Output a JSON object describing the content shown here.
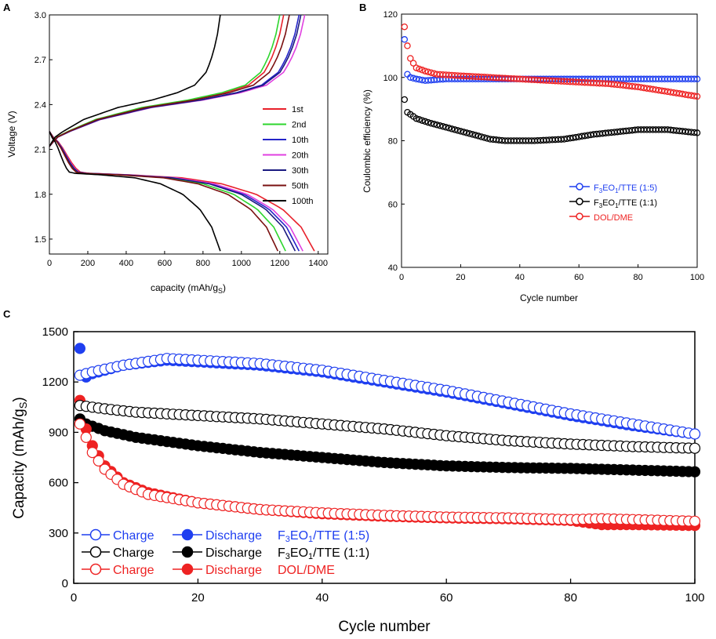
{
  "chart_data": [
    {
      "id": "A",
      "type": "line",
      "panel_label": "A",
      "xlabel_main": "capacity (mAh/g",
      "xlabel_sub": "S",
      "xlabel_end": ")",
      "ylabel": "Voltage (V)",
      "xlim": [
        0,
        1450
      ],
      "ylim": [
        1.4,
        3.0
      ],
      "xticks": [
        "0",
        "200",
        "400",
        "600",
        "800",
        "1000",
        "1200",
        "1400"
      ],
      "yticks": [
        "1.5",
        "1.8",
        "2.1",
        "2.4",
        "2.7",
        "3.0"
      ],
      "legend_position": "center-right",
      "series": [
        {
          "name": "1st",
          "color": "#e8202a",
          "discharge_cap": 1380,
          "charge_cap": 1220
        },
        {
          "name": "2nd",
          "color": "#2dd52d",
          "discharge_cap": 1230,
          "charge_cap": 1200
        },
        {
          "name": "10th",
          "color": "#2424c8",
          "discharge_cap": 1300,
          "charge_cap": 1300
        },
        {
          "name": "20th",
          "color": "#e040e0",
          "discharge_cap": 1320,
          "charge_cap": 1330
        },
        {
          "name": "30th",
          "color": "#1a1a80",
          "discharge_cap": 1280,
          "charge_cap": 1310
        },
        {
          "name": "50th",
          "color": "#7a1010",
          "discharge_cap": 1190,
          "charge_cap": 1250
        },
        {
          "name": "100th",
          "color": "#000000",
          "discharge_cap": 890,
          "charge_cap": 890
        }
      ]
    },
    {
      "id": "B",
      "type": "scatter",
      "panel_label": "B",
      "xlabel": "Cycle number",
      "ylabel": "Coulombic efficiency (%)",
      "xlim": [
        0,
        100
      ],
      "ylim": [
        40,
        120
      ],
      "xticks": [
        "0",
        "20",
        "40",
        "60",
        "80",
        "100"
      ],
      "yticks": [
        "40",
        "60",
        "80",
        "100",
        "120"
      ],
      "legend_position": "center-right",
      "series": [
        {
          "name_main": "F",
          "name_sub1": "3",
          "name_mid": "EO",
          "name_sub2": "1",
          "name_end": "/TTE (1:5)",
          "color": "#1f3ff0",
          "x": [
            1,
            2,
            3,
            5,
            8,
            15,
            30,
            50,
            70,
            90,
            100
          ],
          "y": [
            112,
            101,
            100,
            99.5,
            99,
            99.5,
            99.5,
            99.5,
            99.5,
            99.5,
            99.5
          ]
        },
        {
          "name_main": "F",
          "name_sub1": "3",
          "name_mid": "EO",
          "name_sub2": "1",
          "name_end": "/TTE (1:1)",
          "color": "#000000",
          "x": [
            1,
            2,
            5,
            10,
            20,
            30,
            35,
            45,
            55,
            65,
            75,
            80,
            90,
            100
          ],
          "y": [
            93,
            89,
            87,
            85.5,
            83,
            80.5,
            80,
            80,
            80.5,
            82,
            83,
            83.5,
            83.5,
            82.5
          ]
        },
        {
          "name_main": "DOL/DME",
          "name_sub1": "",
          "name_mid": "",
          "name_sub2": "",
          "name_end": "",
          "color": "#ee2222",
          "x": [
            1,
            2,
            3,
            5,
            8,
            12,
            20,
            30,
            40,
            50,
            60,
            70,
            80,
            90,
            100
          ],
          "y": [
            116,
            110,
            106,
            103,
            102,
            101,
            100.5,
            100,
            99.5,
            99,
            98.5,
            98,
            97,
            95.5,
            94
          ]
        }
      ]
    },
    {
      "id": "C",
      "type": "scatter",
      "panel_label": "C",
      "xlabel": "Cycle number",
      "ylabel_main": "Capacity (mAh/g",
      "ylabel_sub": "S",
      "ylabel_end": ")",
      "xlim": [
        0,
        100
      ],
      "ylim": [
        0,
        1500
      ],
      "xticks": [
        "0",
        "20",
        "40",
        "60",
        "80",
        "100"
      ],
      "yticks": [
        "0",
        "300",
        "600",
        "900",
        "1200",
        "1500"
      ],
      "legend_position": "bottom-left",
      "legend_rows": [
        {
          "charge": "Charge",
          "discharge": "Discharge",
          "label_main": "F",
          "label_sub1": "3",
          "label_mid": "EO",
          "label_sub2": "1",
          "label_end": "/TTE (1:5)",
          "color": "#1f3ff0"
        },
        {
          "charge": "Charge",
          "discharge": "Discharge",
          "label_main": "F",
          "label_sub1": "3",
          "label_mid": "EO",
          "label_sub2": "1",
          "label_end": "/TTE (1:1)",
          "color": "#000000"
        },
        {
          "charge": "Charge",
          "discharge": "Discharge",
          "label_main": "DOL/DME",
          "label_sub1": "",
          "label_mid": "",
          "label_sub2": "",
          "label_end": "",
          "color": "#ee2222"
        }
      ],
      "series": [
        {
          "name": "F3EO1/TTE (1:5) Charge",
          "color": "#1f3ff0",
          "filled": false,
          "x": [
            1,
            3,
            8,
            15,
            20,
            30,
            40,
            50,
            60,
            70,
            80,
            90,
            100
          ],
          "y": [
            1240,
            1260,
            1300,
            1340,
            1330,
            1310,
            1270,
            1210,
            1150,
            1080,
            1010,
            950,
            890
          ]
        },
        {
          "name": "F3EO1/TTE (1:5) Discharge",
          "color": "#1f3ff0",
          "filled": true,
          "x": [
            1,
            2,
            3,
            8,
            15,
            20,
            30,
            40,
            50,
            60,
            70,
            80,
            90,
            100
          ],
          "y": [
            1400,
            1230,
            1250,
            1300,
            1330,
            1320,
            1300,
            1260,
            1200,
            1140,
            1070,
            1000,
            940,
            890
          ]
        },
        {
          "name": "F3EO1/TTE (1:1) Charge",
          "color": "#000000",
          "filled": false,
          "x": [
            1,
            5,
            10,
            20,
            30,
            40,
            50,
            60,
            70,
            80,
            90,
            100
          ],
          "y": [
            1060,
            1040,
            1020,
            1000,
            980,
            950,
            920,
            880,
            850,
            830,
            815,
            805
          ]
        },
        {
          "name": "F3EO1/TTE (1:1) Discharge",
          "color": "#000000",
          "filled": true,
          "x": [
            1,
            2,
            5,
            10,
            20,
            30,
            40,
            50,
            60,
            70,
            80,
            90,
            100
          ],
          "y": [
            980,
            950,
            910,
            870,
            820,
            780,
            750,
            720,
            700,
            690,
            685,
            675,
            665
          ]
        },
        {
          "name": "DOL/DME Charge",
          "color": "#ee2222",
          "filled": false,
          "x": [
            1,
            2,
            3,
            5,
            8,
            12,
            20,
            30,
            40,
            50,
            60,
            70,
            80,
            85,
            90,
            100
          ],
          "y": [
            950,
            870,
            780,
            680,
            590,
            530,
            480,
            440,
            420,
            405,
            395,
            390,
            380,
            385,
            380,
            370
          ]
        },
        {
          "name": "DOL/DME Discharge",
          "color": "#ee2222",
          "filled": true,
          "x": [
            1,
            2,
            3,
            5,
            8,
            12,
            20,
            30,
            40,
            50,
            60,
            70,
            80,
            85,
            90,
            100
          ],
          "y": [
            1090,
            920,
            820,
            700,
            600,
            540,
            480,
            440,
            415,
            400,
            390,
            385,
            375,
            350,
            350,
            345
          ]
        }
      ]
    }
  ]
}
